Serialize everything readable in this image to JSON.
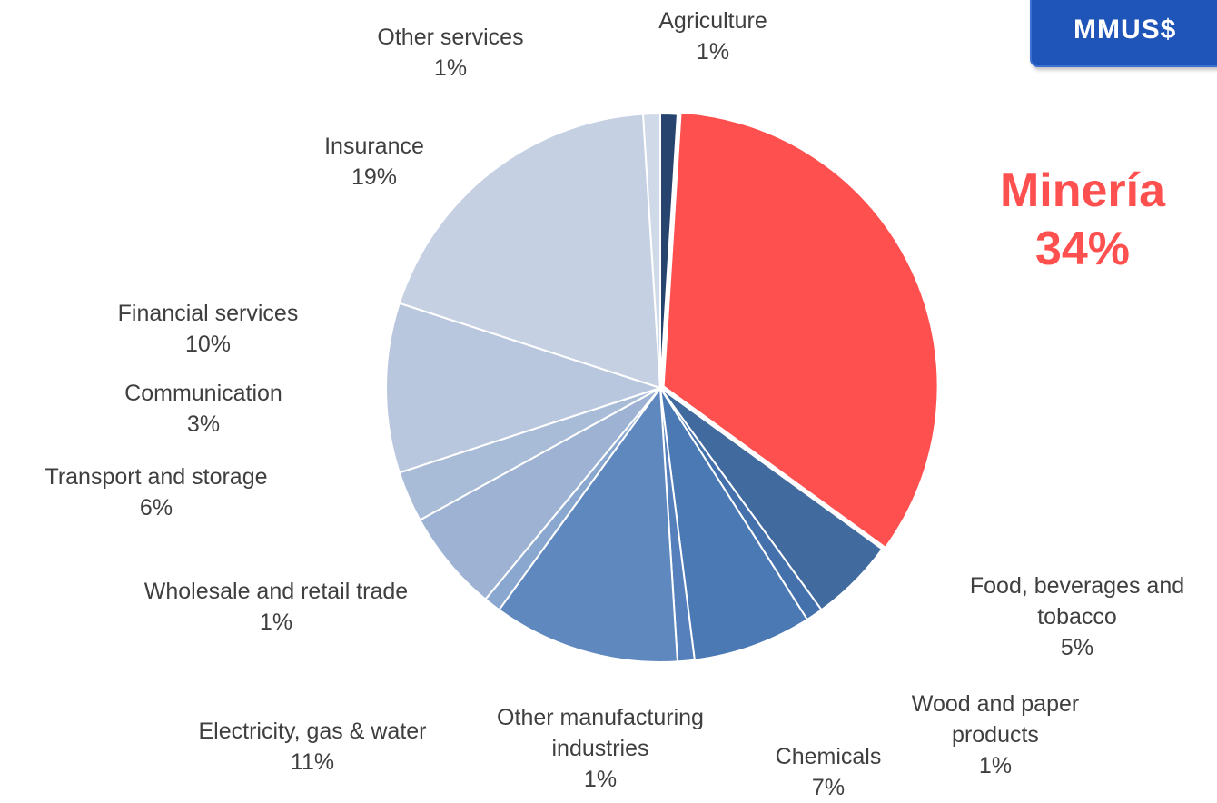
{
  "badge": {
    "text": "MMUS$"
  },
  "highlight": {
    "name": "Minería",
    "percent": "34%",
    "color": "#ff5050"
  },
  "chart_data": {
    "type": "pie",
    "title": "",
    "slices": [
      {
        "label": "Agriculture",
        "value": 1,
        "value_label": "1%",
        "color": "#27446f"
      },
      {
        "label": "Minería",
        "value": 34,
        "value_label": "34%",
        "color": "#ff5050"
      },
      {
        "label": "Food, beverages and tobacco",
        "value": 5,
        "value_label": "5%",
        "color": "#416a9e"
      },
      {
        "label": "Wood and paper products",
        "value": 1,
        "value_label": "1%",
        "color": "#4471ab"
      },
      {
        "label": "Chemicals",
        "value": 7,
        "value_label": "7%",
        "color": "#4a79b4"
      },
      {
        "label": "Other manufacturing industries",
        "value": 1,
        "value_label": "1%",
        "color": "#5680bb"
      },
      {
        "label": "Electricity, gas & water",
        "value": 11,
        "value_label": "11%",
        "color": "#5f88bf"
      },
      {
        "label": "Wholesale and retail trade",
        "value": 1,
        "value_label": "1%",
        "color": "#8aa7cf"
      },
      {
        "label": "Transport and storage",
        "value": 6,
        "value_label": "6%",
        "color": "#9eb3d3"
      },
      {
        "label": "Communication",
        "value": 3,
        "value_label": "3%",
        "color": "#a9bcd7"
      },
      {
        "label": "Financial services",
        "value": 10,
        "value_label": "10%",
        "color": "#b9c7de"
      },
      {
        "label": "Insurance",
        "value": 19,
        "value_label": "19%",
        "color": "#c5d0e3"
      },
      {
        "label": "Other services",
        "value": 1,
        "value_label": "1%",
        "color": "#d0d9e8"
      }
    ]
  }
}
